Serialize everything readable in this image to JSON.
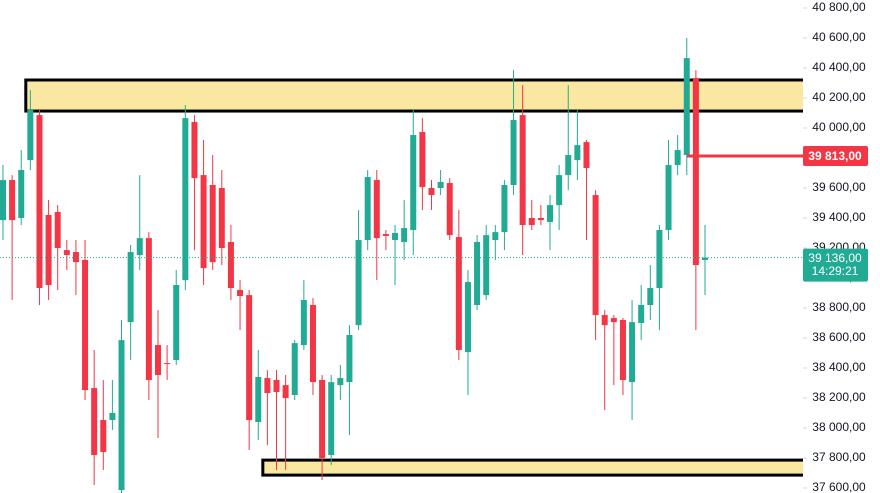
{
  "chart_data": {
    "type": "candlestick",
    "open": [
      39386,
      39653,
      39400,
      39786,
      40086,
      39420,
      39440,
      39186,
      39173,
      39120,
      38266,
      38053,
      38053,
      37586,
      38706,
      39153,
      39266,
      38553,
      38433,
      38453,
      38986,
      40040,
      39686,
      39620,
      39600,
      39240,
      38920,
      38886,
      38040,
      38333,
      38320,
      38286,
      38220,
      38553,
      38820,
      38320,
      37820,
      38286,
      38306,
      38686,
      39253,
      39653,
      39293,
      39253,
      39240,
      39320,
      39973,
      39600,
      39600,
      39633,
      39273,
      38506,
      38820,
      38886,
      39253,
      39306,
      39620,
      40086,
      39400,
      39400,
      39373,
      39486,
      39686,
      39786,
      39906,
      39553,
      38753,
      38733,
      38720,
      38306,
      38700,
      38820,
      38933,
      39320,
      39753,
      39820,
      40333,
      39120
    ],
    "high": [
      39753,
      39686,
      39853,
      40253,
      40120,
      39520,
      39486,
      39253,
      39253,
      39253,
      38520,
      38320,
      38320,
      38720,
      39220,
      39686,
      39306,
      38786,
      38553,
      39053,
      40153,
      40086,
      39920,
      39820,
      39720,
      39353,
      38986,
      38920,
      38520,
      38386,
      38386,
      38353,
      38586,
      38986,
      38866,
      38353,
      38353,
      38420,
      38686,
      39453,
      39720,
      39720,
      39320,
      39353,
      39520,
      40120,
      40066,
      39653,
      39720,
      39666,
      39453,
      39053,
      39286,
      39353,
      39353,
      39653,
      40386,
      40286,
      39520,
      39486,
      39553,
      39753,
      40286,
      40120,
      39920,
      39586,
      38786,
      38753,
      38733,
      38853,
      38953,
      39086,
      39353,
      39920,
      39953,
      40600,
      40386,
      39353
    ],
    "low": [
      39253,
      38853,
      39353,
      39720,
      38820,
      38853,
      38920,
      39053,
      38886,
      38186,
      37620,
      37720,
      37986,
      37566,
      38453,
      39053,
      38186,
      37933,
      38320,
      38420,
      38920,
      39186,
      38953,
      39053,
      39086,
      38853,
      38653,
      37853,
      37920,
      37886,
      37720,
      37720,
      38186,
      38520,
      38220,
      37653,
      37753,
      38186,
      37953,
      38653,
      39186,
      38986,
      39186,
      38953,
      39120,
      39153,
      39453,
      39453,
      39553,
      39253,
      38453,
      38220,
      38786,
      38853,
      39120,
      39186,
      39553,
      39153,
      39320,
      39353,
      39186,
      39320,
      39586,
      39653,
      39253,
      38586,
      38120,
      38286,
      38220,
      38053,
      38586,
      38720,
      38653,
      39253,
      39686,
      39686,
      38653,
      38886
    ],
    "close": [
      39653,
      39386,
      39720,
      40120,
      38933,
      38953,
      39200,
      39153,
      39106,
      38253,
      37820,
      37840,
      38100,
      38586,
      39173,
      39266,
      38320,
      38353,
      38426,
      38953,
      40066,
      39666,
      39066,
      39106,
      39200,
      38933,
      38880,
      38053,
      38340,
      38233,
      38240,
      38200,
      38566,
      38853,
      38306,
      37800,
      38306,
      38333,
      38620,
      39253,
      39673,
      39266,
      39280,
      39300,
      39333,
      39953,
      39606,
      39553,
      39640,
      39286,
      38520,
      38973,
      39240,
      39286,
      39306,
      39620,
      40053,
      39353,
      39353,
      39386,
      39486,
      39686,
      39820,
      39886,
      39733,
      38753,
      38686,
      38706,
      38320,
      38706,
      38820,
      38933,
      39320,
      39753,
      39853,
      40466,
      39086,
      39136
    ],
    "up_color": "#22ab94",
    "down_color": "#f23645",
    "ylim": [
      37600,
      40800
    ],
    "yticks": [
      {
        "value": 37600,
        "label": "37 600,00"
      },
      {
        "value": 37800,
        "label": "37 800,00"
      },
      {
        "value": 38000,
        "label": "38 000,00"
      },
      {
        "value": 38200,
        "label": "38 200,00"
      },
      {
        "value": 38400,
        "label": "38 400,00"
      },
      {
        "value": 38600,
        "label": "38 600,00"
      },
      {
        "value": 38800,
        "label": "38 800,00"
      },
      {
        "value": 39000,
        "label": "39 000,00"
      },
      {
        "value": 39200,
        "label": "39 200,00"
      },
      {
        "value": 39400,
        "label": "39 400,00"
      },
      {
        "value": 39600,
        "label": "39 600,00"
      },
      {
        "value": 39800,
        "label": "39 800,00"
      },
      {
        "value": 40000,
        "label": "40 000,00"
      },
      {
        "value": 40200,
        "label": "40 200,00"
      },
      {
        "value": 40400,
        "label": "40 400,00"
      },
      {
        "value": 40600,
        "label": "40 600,00"
      },
      {
        "value": 40800,
        "label": "40 800,00"
      }
    ],
    "zones": [
      {
        "low": 40113,
        "high": 40320,
        "start": 3,
        "color": "#fbe8a0"
      },
      {
        "low": 37686,
        "high": 37786,
        "start": 29,
        "color": "#fbe8a0"
      }
    ],
    "level": {
      "value": 39813,
      "label": "39 813,00",
      "start": 75,
      "color": "#f23645"
    },
    "current": {
      "value": 39136,
      "label": "39 136,00",
      "countdown": "14:29:21",
      "color": "#22ab94"
    }
  }
}
